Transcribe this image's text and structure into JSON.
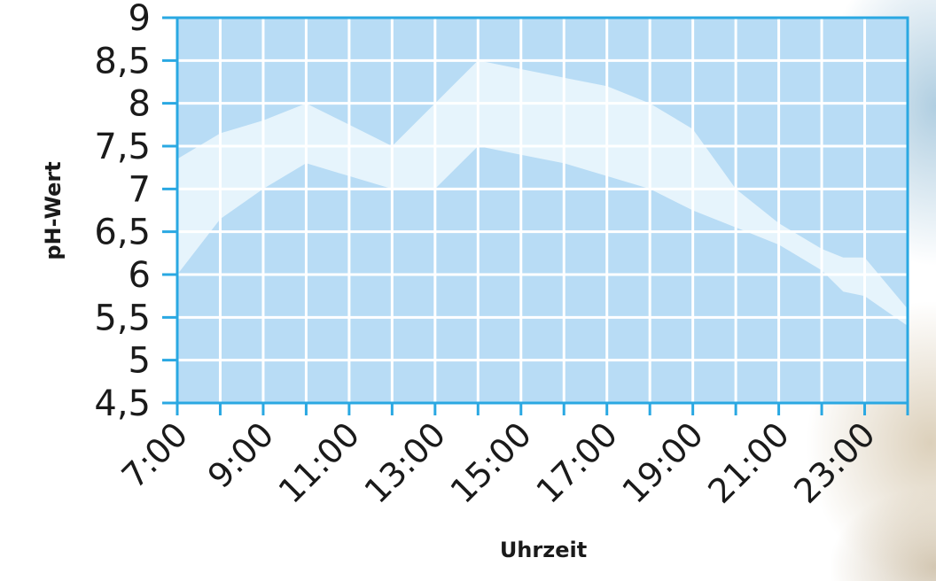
{
  "chart_data": {
    "type": "area",
    "xlabel": "Uhrzeit",
    "ylabel": "pH-Wert",
    "xlim": [
      7,
      24
    ],
    "ylim": [
      4.5,
      9
    ],
    "x_tick_values": [
      7,
      9,
      11,
      13,
      15,
      17,
      19,
      21,
      23
    ],
    "x_tick_labels": [
      "7:00",
      "9:00",
      "11:00",
      "13:00",
      "15:00",
      "17:00",
      "19:00",
      "21:00",
      "23:00"
    ],
    "y_tick_values": [
      4.5,
      5,
      5.5,
      6,
      6.5,
      7,
      7.5,
      8,
      8.5,
      9
    ],
    "y_tick_labels": [
      "4,5",
      "5",
      "5,5",
      "6",
      "6,5",
      "7",
      "7,5",
      "8",
      "8,5",
      "9"
    ],
    "grid": true,
    "series": [
      {
        "x": [
          7,
          8,
          9,
          10,
          11,
          12,
          13,
          14,
          15,
          16,
          17,
          18,
          19,
          20,
          21,
          22,
          22.5,
          23,
          24
        ],
        "upper": [
          7.35,
          7.65,
          7.8,
          8.0,
          7.75,
          7.5,
          8.0,
          8.5,
          8.4,
          8.3,
          8.2,
          8.0,
          7.7,
          7.0,
          6.6,
          6.3,
          6.2,
          6.2,
          5.6
        ],
        "lower": [
          6.0,
          6.65,
          7.0,
          7.3,
          7.15,
          7.0,
          7.0,
          7.5,
          7.4,
          7.3,
          7.15,
          7.0,
          6.75,
          6.55,
          6.35,
          6.05,
          5.8,
          5.75,
          5.4
        ]
      }
    ],
    "colors": {
      "plot_background": "#b8dcf5",
      "band": "#e6f4fc",
      "grid": "#ffffff",
      "axis": "#2aa8e2"
    }
  }
}
